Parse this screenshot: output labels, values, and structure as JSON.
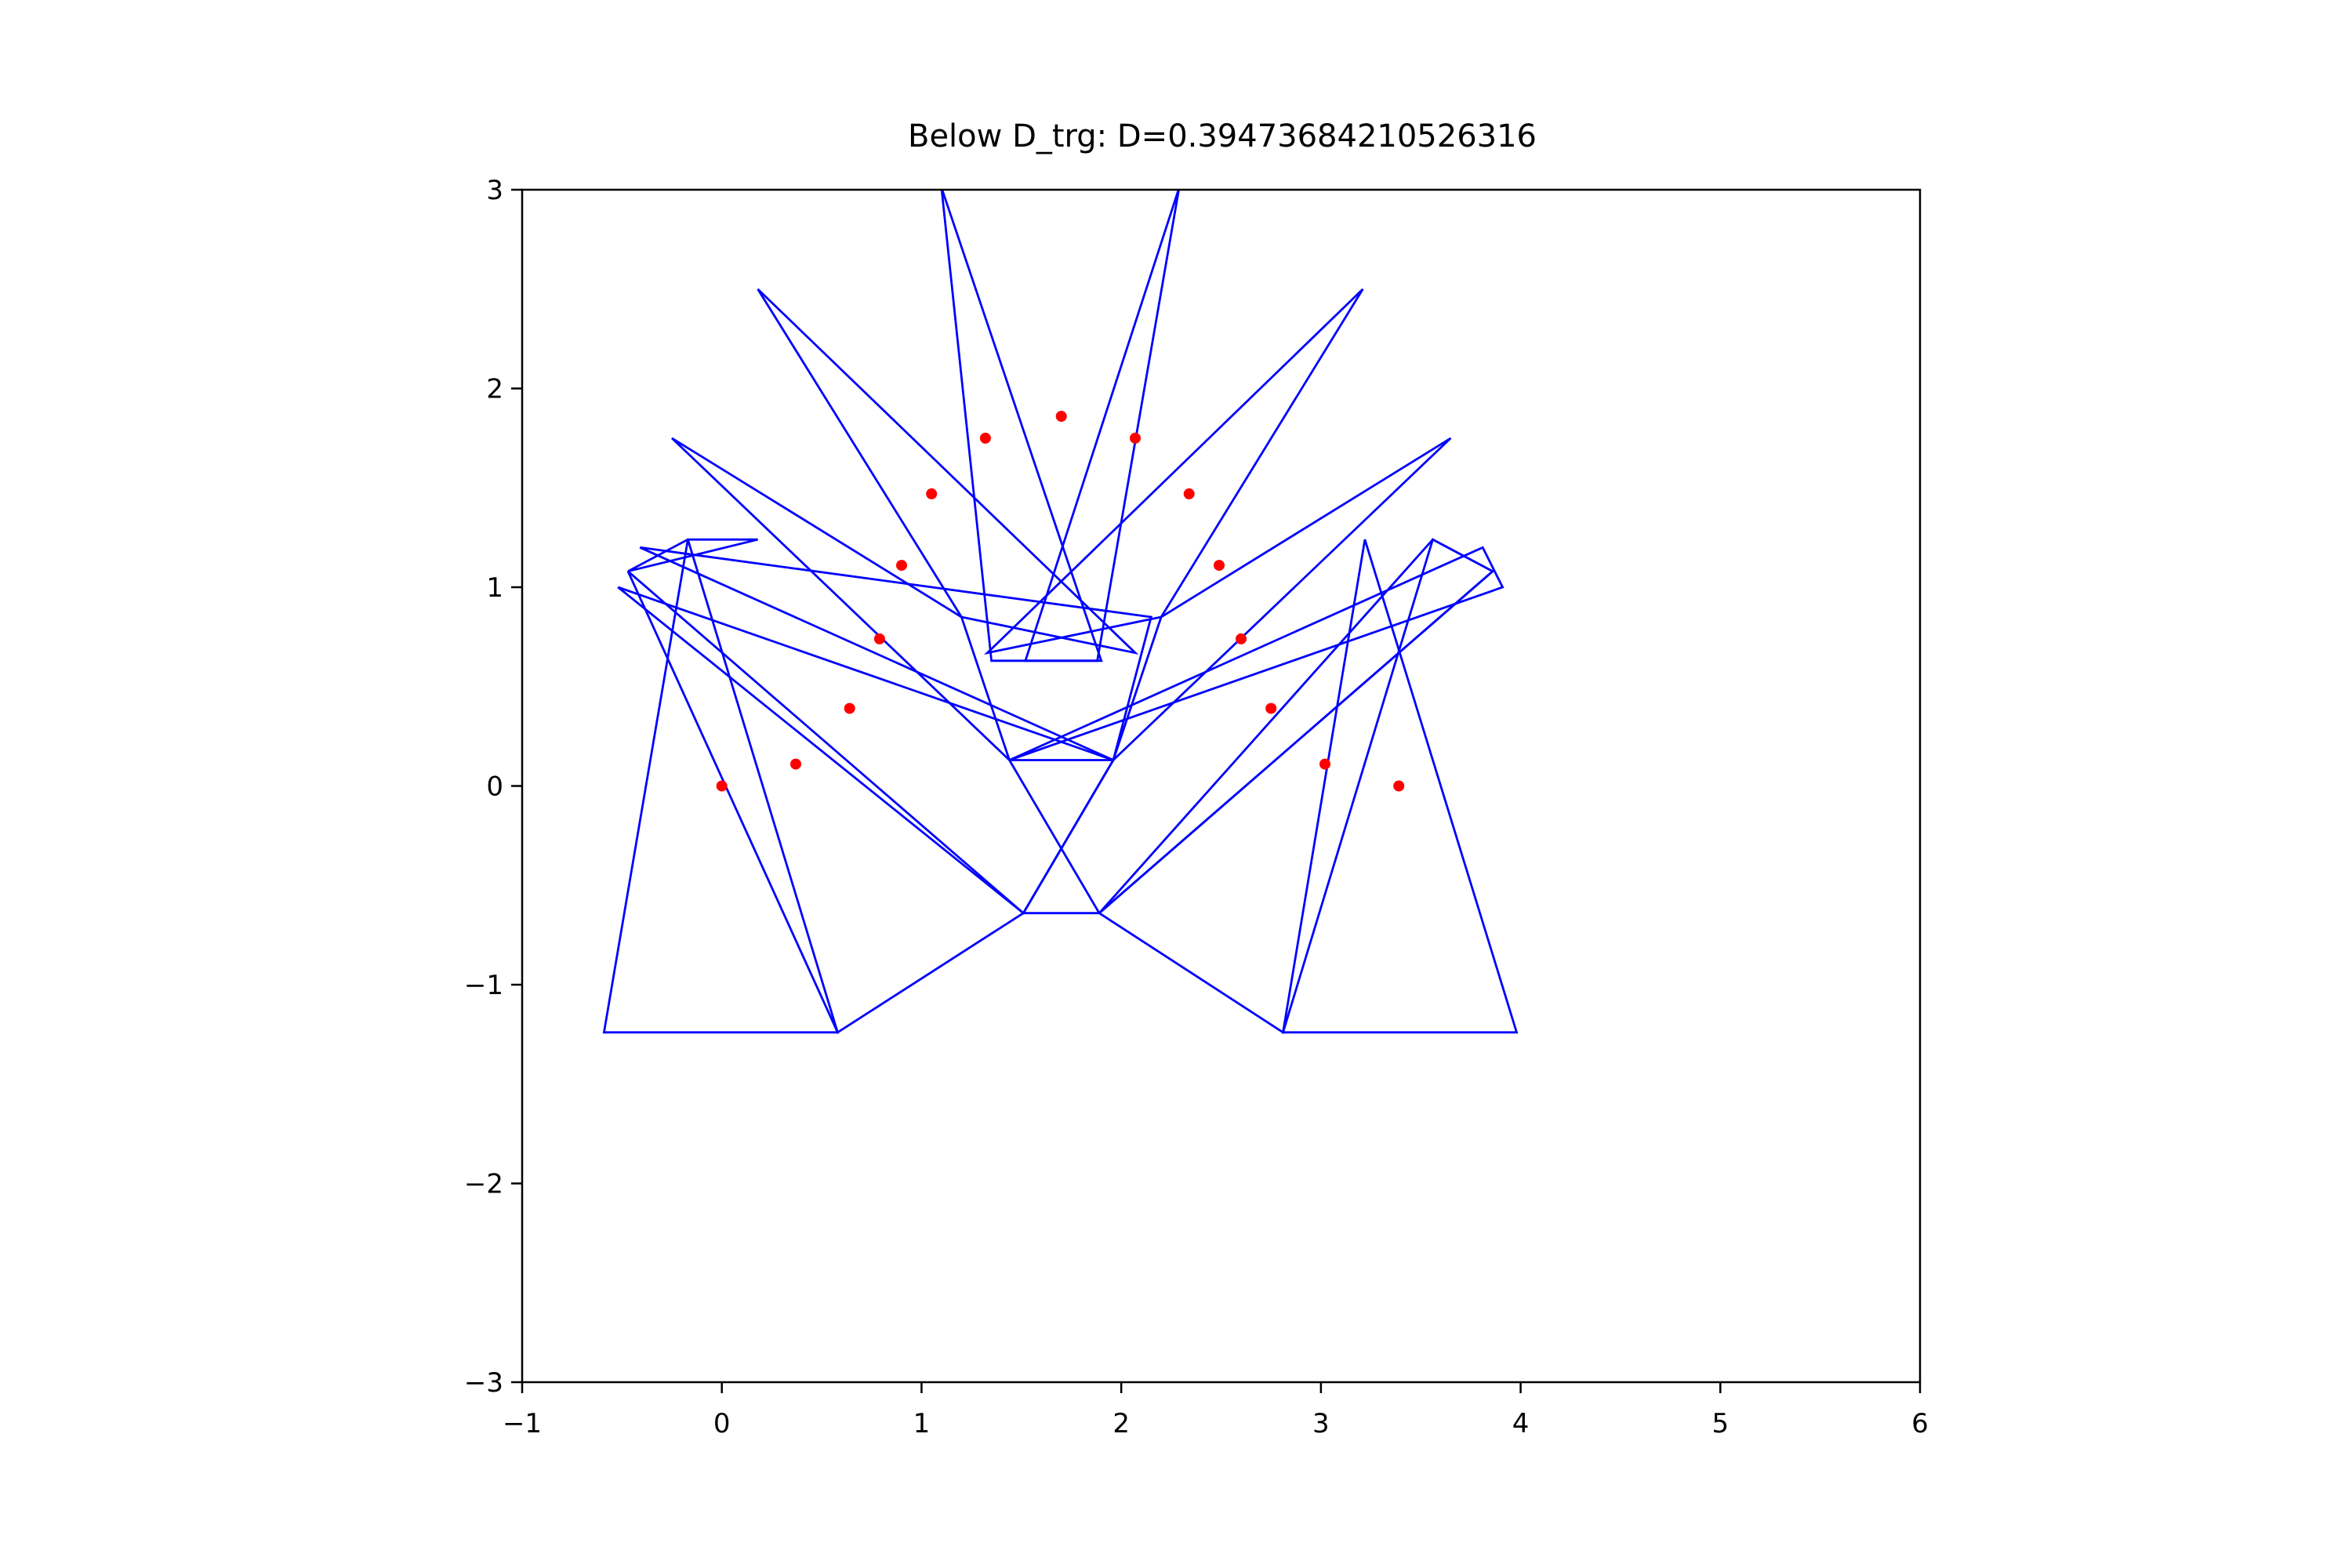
{
  "chart_data": {
    "type": "scatter",
    "title": "Below D_trg: D=0.39473684210526316",
    "xlabel": "",
    "ylabel": "",
    "xlim": [
      -1,
      6
    ],
    "ylim": [
      -3,
      3
    ],
    "xticks": [
      -1,
      0,
      1,
      2,
      3,
      4,
      5,
      6
    ],
    "yticks": [
      -3,
      -2,
      -1,
      0,
      1,
      2,
      3
    ],
    "xtick_labels": [
      "−1",
      "0",
      "1",
      "2",
      "3",
      "4",
      "5",
      "6"
    ],
    "ytick_labels": [
      "−3",
      "−2",
      "−1",
      "0",
      "1",
      "2",
      "3"
    ],
    "grid": false,
    "colors": {
      "polygons": "#0000ff",
      "points": "#ff0000"
    },
    "points": [
      [
        0.0,
        0.0
      ],
      [
        0.37,
        0.11
      ],
      [
        0.64,
        0.39
      ],
      [
        0.79,
        0.74
      ],
      [
        0.9,
        1.11
      ],
      [
        1.05,
        1.47
      ],
      [
        1.32,
        1.75
      ],
      [
        1.7,
        1.86
      ],
      [
        2.07,
        1.75
      ],
      [
        2.34,
        1.47
      ],
      [
        2.49,
        1.11
      ],
      [
        2.6,
        0.74
      ],
      [
        2.75,
        0.39
      ],
      [
        3.02,
        0.11
      ],
      [
        3.39,
        0.0
      ]
    ],
    "polygons": [
      [
        [
          -0.59,
          -1.24
        ],
        [
          0.58,
          -1.24
        ],
        [
          -0.17,
          1.24
        ]
      ],
      [
        [
          0.58,
          -1.24
        ],
        [
          1.51,
          -0.64
        ],
        [
          -0.47,
          1.08
        ]
      ],
      [
        [
          1.51,
          -0.64
        ],
        [
          1.96,
          0.13
        ],
        [
          -0.52,
          1.0
        ]
      ],
      [
        [
          1.96,
          0.13
        ],
        [
          2.15,
          0.85
        ],
        [
          -0.41,
          1.2
        ]
      ],
      [
        [
          1.44,
          0.13
        ],
        [
          1.2,
          0.85
        ],
        [
          -0.25,
          1.75
        ]
      ],
      [
        [
          1.2,
          0.85
        ],
        [
          2.07,
          0.67
        ],
        [
          0.18,
          2.5
        ]
      ],
      [
        [
          1.35,
          0.63
        ],
        [
          1.9,
          0.63
        ],
        [
          1.1,
          3.01
        ]
      ],
      [
        [
          1.52,
          0.63
        ],
        [
          1.88,
          0.63
        ],
        [
          2.29,
          3.01
        ]
      ],
      [
        [
          1.33,
          0.67
        ],
        [
          2.2,
          0.85
        ],
        [
          3.21,
          2.5
        ]
      ],
      [
        [
          2.2,
          0.85
        ],
        [
          1.96,
          0.13
        ],
        [
          3.65,
          1.75
        ]
      ],
      [
        [
          1.44,
          0.13
        ],
        [
          3.81,
          1.2
        ],
        [
          3.91,
          1.0
        ]
      ],
      [
        [
          1.89,
          -0.64
        ],
        [
          3.86,
          1.08
        ],
        [
          3.56,
          1.24
        ]
      ],
      [
        [
          2.81,
          -1.24
        ],
        [
          3.98,
          -1.24
        ],
        [
          3.22,
          1.24
        ]
      ],
      [
        [
          1.89,
          -0.64
        ],
        [
          2.81,
          -1.24
        ],
        [
          3.56,
          1.24
        ],
        [
          3.86,
          1.08
        ]
      ],
      [
        [
          -0.47,
          1.08
        ],
        [
          -0.17,
          1.24
        ],
        [
          0.18,
          1.24
        ]
      ],
      [
        [
          1.51,
          -0.64
        ],
        [
          1.96,
          0.13
        ],
        [
          1.44,
          0.13
        ],
        [
          1.89,
          -0.64
        ]
      ]
    ]
  }
}
